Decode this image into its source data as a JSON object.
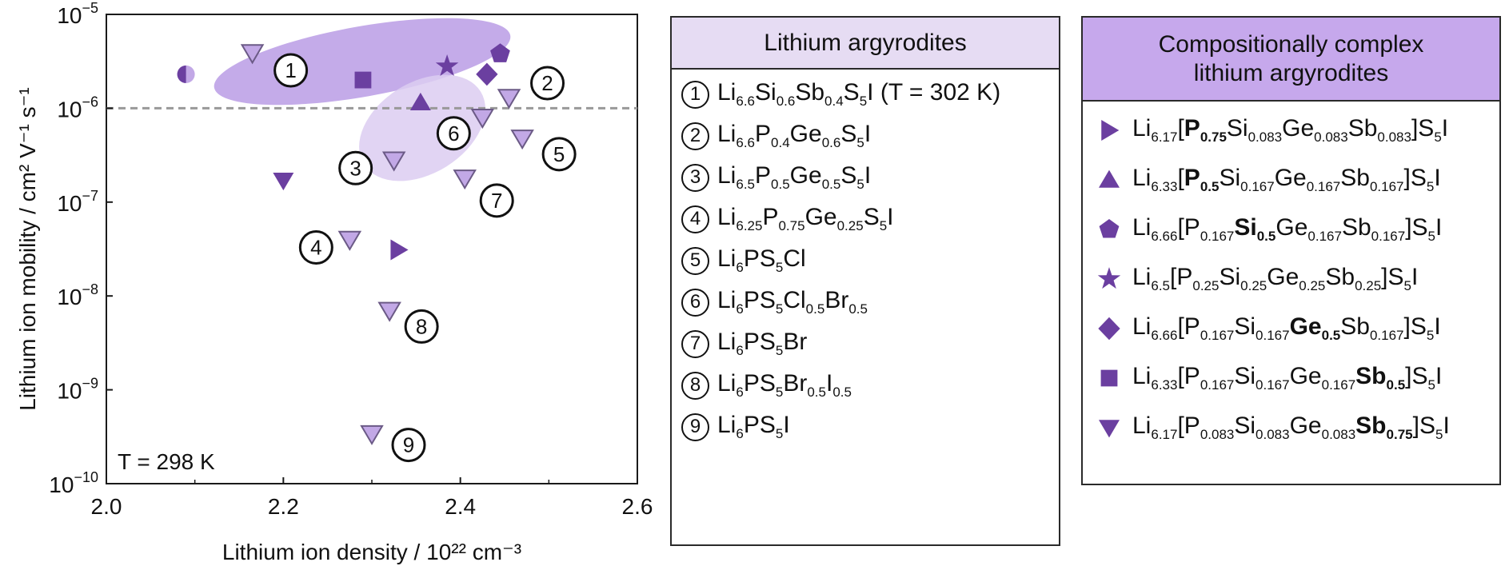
{
  "chart_data": {
    "type": "scatter",
    "title": "",
    "xlabel": "Lithium ion density / 10²² cm⁻³",
    "ylabel": "Lithium ion mobility / cm² V⁻¹ s⁻¹",
    "xlim": [
      2.0,
      2.6
    ],
    "ylim_log10": [
      -10,
      -5
    ],
    "y_scale": "log",
    "x_ticks": [
      "2.0",
      "2.2",
      "2.4",
      "2.6"
    ],
    "y_ticks": [
      {
        "base": "10",
        "exp": "−5",
        "value": 1e-05
      },
      {
        "base": "10",
        "exp": "−6",
        "value": 1e-06
      },
      {
        "base": "10",
        "exp": "−7",
        "value": 1e-07
      },
      {
        "base": "10",
        "exp": "−8",
        "value": 1e-08
      },
      {
        "base": "10",
        "exp": "−9",
        "value": 1e-09
      },
      {
        "base": "10",
        "exp": "−10",
        "value": 1e-10
      }
    ],
    "reference_line_y": 1e-06,
    "annotation": "T = 298 K",
    "grid": false,
    "colors": {
      "dark": "#6b3fa0",
      "light": "#c2a8e6",
      "ellipse_dark": "#b596e4",
      "ellipse_light": "#dccdf1",
      "ref_line": "#999999"
    },
    "series": [
      {
        "name": "Lithium argyrodites",
        "marker": "triangle-down-open",
        "points": [
          {
            "label": "1",
            "x": 2.165,
            "y": 3.9e-06
          },
          {
            "label": "2",
            "x": 2.455,
            "y": 1.3e-06
          },
          {
            "label": "3",
            "x": 2.325,
            "y": 2.8e-07
          },
          {
            "label": "4",
            "x": 2.275,
            "y": 4e-08
          },
          {
            "label": "5",
            "x": 2.47,
            "y": 4.8e-07
          },
          {
            "label": "6",
            "x": 2.425,
            "y": 8e-07
          },
          {
            "label": "7",
            "x": 2.405,
            "y": 1.8e-07
          },
          {
            "label": "8",
            "x": 2.32,
            "y": 7e-09
          },
          {
            "label": "9",
            "x": 2.3,
            "y": 3.4e-10
          }
        ]
      },
      {
        "name": "Compositionally complex lithium argyrodites",
        "points": [
          {
            "marker": "triangle-right",
            "x": 2.33,
            "y": 3.1e-08
          },
          {
            "marker": "triangle-up",
            "x": 2.355,
            "y": 1.15e-06
          },
          {
            "marker": "pentagon",
            "x": 2.445,
            "y": 3.8e-06
          },
          {
            "marker": "star",
            "x": 2.385,
            "y": 2.8e-06
          },
          {
            "marker": "diamond",
            "x": 2.43,
            "y": 2.3e-06
          },
          {
            "marker": "square",
            "x": 2.29,
            "y": 2e-06
          },
          {
            "marker": "triangle-down",
            "x": 2.2,
            "y": 1.7e-07
          }
        ]
      },
      {
        "name": "",
        "points": [
          {
            "marker": "half-circle",
            "x": 2.09,
            "y": 2.3e-06
          }
        ]
      }
    ]
  },
  "legend1": {
    "title": "Lithium argyrodites",
    "items": [
      {
        "num": "1",
        "tokens": [
          {
            "t": "Li"
          },
          {
            "s": "6.6"
          },
          {
            "t": "Si"
          },
          {
            "s": "0.6"
          },
          {
            "t": "Sb"
          },
          {
            "s": "0.4"
          },
          {
            "t": "S"
          },
          {
            "s": "5"
          },
          {
            "t": "I (T = 302 K)"
          }
        ]
      },
      {
        "num": "2",
        "tokens": [
          {
            "t": "Li"
          },
          {
            "s": "6.6"
          },
          {
            "t": "P"
          },
          {
            "s": "0.4"
          },
          {
            "t": "Ge"
          },
          {
            "s": "0.6"
          },
          {
            "t": "S"
          },
          {
            "s": "5"
          },
          {
            "t": "I"
          }
        ]
      },
      {
        "num": "3",
        "tokens": [
          {
            "t": "Li"
          },
          {
            "s": "6.5"
          },
          {
            "t": "P"
          },
          {
            "s": "0.5"
          },
          {
            "t": "Ge"
          },
          {
            "s": "0.5"
          },
          {
            "t": "S"
          },
          {
            "s": "5"
          },
          {
            "t": "I"
          }
        ]
      },
      {
        "num": "4",
        "tokens": [
          {
            "t": "Li"
          },
          {
            "s": "6.25"
          },
          {
            "t": "P"
          },
          {
            "s": "0.75"
          },
          {
            "t": "Ge"
          },
          {
            "s": "0.25"
          },
          {
            "t": "S"
          },
          {
            "s": "5"
          },
          {
            "t": "I"
          }
        ]
      },
      {
        "num": "5",
        "tokens": [
          {
            "t": "Li"
          },
          {
            "s": "6"
          },
          {
            "t": "PS"
          },
          {
            "s": "5"
          },
          {
            "t": "Cl"
          }
        ]
      },
      {
        "num": "6",
        "tokens": [
          {
            "t": "Li"
          },
          {
            "s": "6"
          },
          {
            "t": "PS"
          },
          {
            "s": "5"
          },
          {
            "t": "Cl"
          },
          {
            "s": "0.5"
          },
          {
            "t": "Br"
          },
          {
            "s": "0.5"
          }
        ]
      },
      {
        "num": "7",
        "tokens": [
          {
            "t": "Li"
          },
          {
            "s": "6"
          },
          {
            "t": "PS"
          },
          {
            "s": "5"
          },
          {
            "t": "Br"
          }
        ]
      },
      {
        "num": "8",
        "tokens": [
          {
            "t": "Li"
          },
          {
            "s": "6"
          },
          {
            "t": "PS"
          },
          {
            "s": "5"
          },
          {
            "t": "Br"
          },
          {
            "s": "0.5"
          },
          {
            "t": "I"
          },
          {
            "s": "0.5"
          }
        ]
      },
      {
        "num": "9",
        "tokens": [
          {
            "t": "Li"
          },
          {
            "s": "6"
          },
          {
            "t": "PS"
          },
          {
            "s": "5"
          },
          {
            "t": "I"
          }
        ]
      }
    ]
  },
  "legend2": {
    "title_line1": "Compositionally complex",
    "title_line2": "lithium argyrodites",
    "items": [
      {
        "icon": "triangle-right-icon",
        "tokens": [
          {
            "t": "Li"
          },
          {
            "s": "6.17"
          },
          {
            "t": "["
          },
          {
            "t": "P",
            "b": 1
          },
          {
            "s": "0.75",
            "b": 1
          },
          {
            "t": "Si"
          },
          {
            "s": "0.083"
          },
          {
            "t": "Ge"
          },
          {
            "s": "0.083"
          },
          {
            "t": "Sb"
          },
          {
            "s": "0.083"
          },
          {
            "t": "]S"
          },
          {
            "s": "5"
          },
          {
            "t": "I"
          }
        ]
      },
      {
        "icon": "triangle-up-icon",
        "tokens": [
          {
            "t": "Li"
          },
          {
            "s": "6.33"
          },
          {
            "t": "["
          },
          {
            "t": "P",
            "b": 1
          },
          {
            "s": "0.5",
            "b": 1
          },
          {
            "t": "Si"
          },
          {
            "s": "0.167"
          },
          {
            "t": "Ge"
          },
          {
            "s": "0.167"
          },
          {
            "t": "Sb"
          },
          {
            "s": "0.167"
          },
          {
            "t": "]S"
          },
          {
            "s": "5"
          },
          {
            "t": "I"
          }
        ]
      },
      {
        "icon": "pentagon-icon",
        "tokens": [
          {
            "t": "Li"
          },
          {
            "s": "6.66"
          },
          {
            "t": "[P"
          },
          {
            "s": "0.167"
          },
          {
            "t": "Si",
            "b": 1
          },
          {
            "s": "0.5",
            "b": 1
          },
          {
            "t": "Ge"
          },
          {
            "s": "0.167"
          },
          {
            "t": "Sb"
          },
          {
            "s": "0.167"
          },
          {
            "t": "]S"
          },
          {
            "s": "5"
          },
          {
            "t": "I"
          }
        ]
      },
      {
        "icon": "star-icon",
        "tokens": [
          {
            "t": "Li"
          },
          {
            "s": "6.5"
          },
          {
            "t": "[P"
          },
          {
            "s": "0.25"
          },
          {
            "t": "Si"
          },
          {
            "s": "0.25"
          },
          {
            "t": "Ge"
          },
          {
            "s": "0.25"
          },
          {
            "t": "Sb"
          },
          {
            "s": "0.25"
          },
          {
            "t": "]S"
          },
          {
            "s": "5"
          },
          {
            "t": "I"
          }
        ]
      },
      {
        "icon": "diamond-icon",
        "tokens": [
          {
            "t": "Li"
          },
          {
            "s": "6.66"
          },
          {
            "t": "[P"
          },
          {
            "s": "0.167"
          },
          {
            "t": "Si"
          },
          {
            "s": "0.167"
          },
          {
            "t": "Ge",
            "b": 1
          },
          {
            "s": "0.5",
            "b": 1
          },
          {
            "t": "Sb"
          },
          {
            "s": "0.167"
          },
          {
            "t": "]S"
          },
          {
            "s": "5"
          },
          {
            "t": "I"
          }
        ]
      },
      {
        "icon": "square-icon",
        "tokens": [
          {
            "t": "Li"
          },
          {
            "s": "6.33"
          },
          {
            "t": "[P"
          },
          {
            "s": "0.167"
          },
          {
            "t": "Si"
          },
          {
            "s": "0.167"
          },
          {
            "t": "Ge"
          },
          {
            "s": "0.167"
          },
          {
            "t": "Sb",
            "b": 1
          },
          {
            "s": "0.5",
            "b": 1
          },
          {
            "t": "]S"
          },
          {
            "s": "5"
          },
          {
            "t": "I"
          }
        ]
      },
      {
        "icon": "triangle-down-icon",
        "tokens": [
          {
            "t": "Li"
          },
          {
            "s": "6.17"
          },
          {
            "t": "[P"
          },
          {
            "s": "0.083"
          },
          {
            "t": "Si"
          },
          {
            "s": "0.083"
          },
          {
            "t": "Ge"
          },
          {
            "s": "0.083"
          },
          {
            "t": "Sb",
            "b": 1
          },
          {
            "s": "0.75",
            "b": 1
          },
          {
            "t": "]S"
          },
          {
            "s": "5"
          },
          {
            "t": "I"
          }
        ]
      }
    ]
  }
}
